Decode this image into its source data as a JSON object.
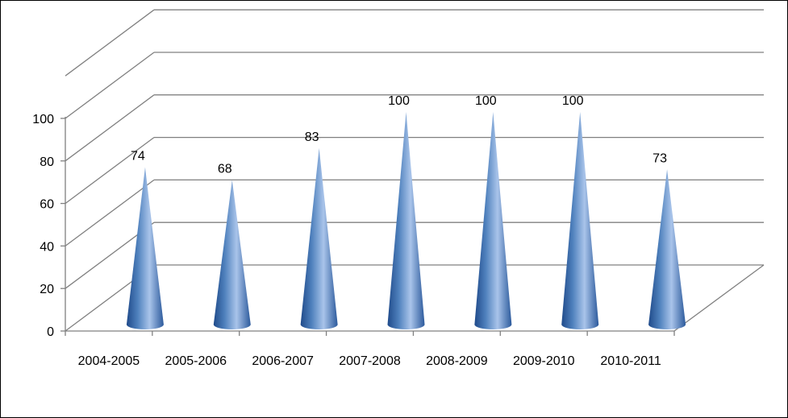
{
  "chart_data": {
    "type": "bar",
    "subtype": "3d-cone",
    "categories": [
      "2004-2005",
      "2005-2006",
      "2006-2007",
      "2007-2008",
      "2008-2009",
      "2009-2010",
      "2010-2011"
    ],
    "values": [
      74,
      68,
      83,
      100,
      100,
      100,
      73
    ],
    "data_labels": [
      "74",
      "68",
      "83",
      "100",
      "100",
      "100",
      "73"
    ],
    "y_ticks": [
      "0",
      "20",
      "40",
      "60",
      "80",
      "100"
    ],
    "ylim": [
      0,
      100
    ],
    "title": "",
    "xlabel": "",
    "ylabel": "",
    "grid": true,
    "legend": "none",
    "colors": {
      "cone_dark": "#1f4a8a",
      "cone_mid": "#4f81bd",
      "cone_light": "#a9c4ea",
      "grid": "#808080"
    }
  }
}
